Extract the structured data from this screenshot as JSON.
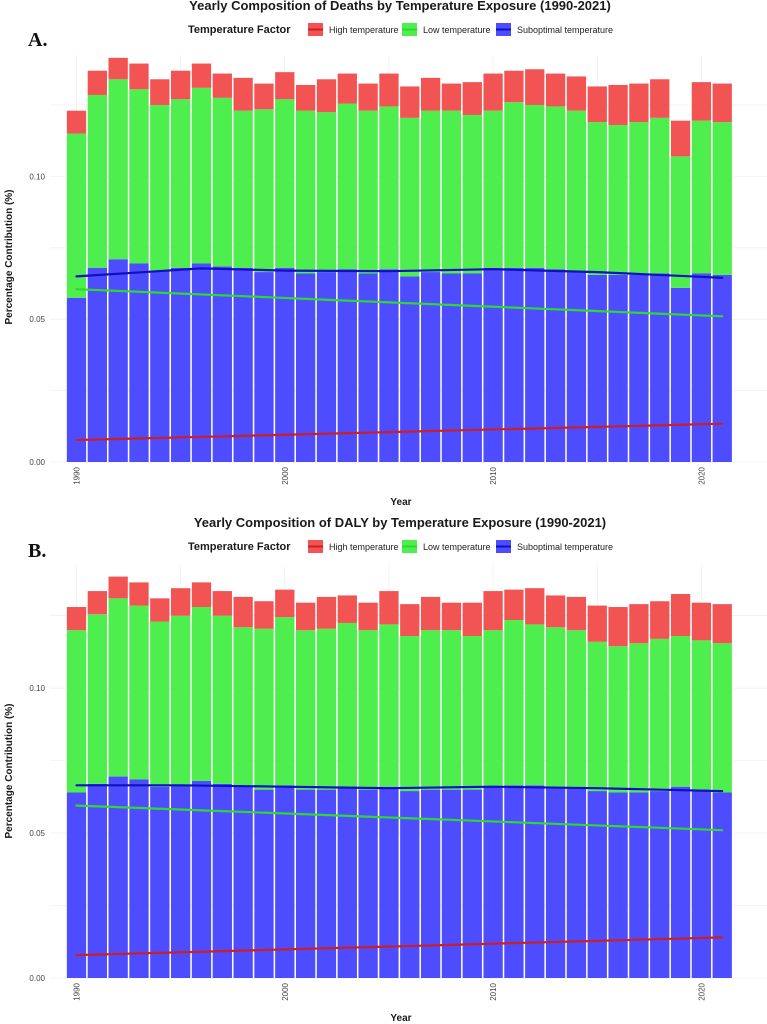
{
  "chart_data": [
    {
      "type": "bar",
      "panel_label": "A.",
      "title": "Yearly Composition of Deaths by Temperature Exposure (1990-2021)",
      "xlabel": "Year",
      "ylabel": "Percentage Contribution (%)",
      "legend_title": "Temperature Factor",
      "legend_position": "top",
      "ylim": [
        0,
        0.1425
      ],
      "y_ticks": [
        "0.00",
        "0.05",
        "0.10"
      ],
      "y_tick_values": [
        0,
        0.05,
        0.1
      ],
      "x_ticks": [
        "1990",
        "2000",
        "2010",
        "2020"
      ],
      "x_tick_values": [
        1990,
        2000,
        2010,
        2020
      ],
      "grid": true,
      "x": [
        1990,
        1991,
        1992,
        1993,
        1994,
        1995,
        1996,
        1997,
        1998,
        1999,
        2000,
        2001,
        2002,
        2003,
        2004,
        2005,
        2006,
        2007,
        2008,
        2009,
        2010,
        2011,
        2012,
        2013,
        2014,
        2015,
        2016,
        2017,
        2018,
        2019,
        2020,
        2021
      ],
      "series": [
        {
          "name": "Suboptimal temperature",
          "color": "#4d4dff",
          "values": [
            0.0575,
            0.068,
            0.071,
            0.0695,
            0.067,
            0.068,
            0.0695,
            0.0685,
            0.068,
            0.0665,
            0.068,
            0.066,
            0.0665,
            0.0675,
            0.066,
            0.0675,
            0.065,
            0.0665,
            0.066,
            0.066,
            0.068,
            0.068,
            0.068,
            0.0675,
            0.067,
            0.0655,
            0.0655,
            0.0655,
            0.066,
            0.061,
            0.066,
            0.0655
          ]
        },
        {
          "name": "Low temperature",
          "color": "#4dee4d",
          "values": [
            0.0575,
            0.0605,
            0.063,
            0.061,
            0.058,
            0.059,
            0.0615,
            0.059,
            0.055,
            0.057,
            0.059,
            0.057,
            0.056,
            0.058,
            0.057,
            0.057,
            0.0555,
            0.0565,
            0.057,
            0.0555,
            0.055,
            0.058,
            0.057,
            0.057,
            0.056,
            0.0535,
            0.0525,
            0.0535,
            0.0545,
            0.046,
            0.0535,
            0.0535
          ]
        },
        {
          "name": "High temperature",
          "color": "#f25454",
          "values": [
            0.008,
            0.0085,
            0.0075,
            0.009,
            0.009,
            0.01,
            0.0085,
            0.0085,
            0.0115,
            0.009,
            0.0095,
            0.009,
            0.0115,
            0.0105,
            0.0095,
            0.0115,
            0.011,
            0.0115,
            0.0095,
            0.0115,
            0.013,
            0.011,
            0.0125,
            0.0115,
            0.012,
            0.0125,
            0.014,
            0.0135,
            0.0135,
            0.0125,
            0.0135,
            0.0135
          ]
        }
      ],
      "trend_lines": [
        {
          "name": "High temperature",
          "color": "#cc1f1f",
          "start": 0.0077,
          "end": 0.0134
        },
        {
          "name": "Low temperature",
          "color": "#2fd82f",
          "start": 0.0605,
          "end": 0.051
        },
        {
          "name": "Suboptimal temperature",
          "color": "#1010c0",
          "points": [
            [
              1990,
              0.065
            ],
            [
              1996,
              0.0678
            ],
            [
              2000,
              0.067
            ],
            [
              2005,
              0.0668
            ],
            [
              2010,
              0.0675
            ],
            [
              2015,
              0.0665
            ],
            [
              2021,
              0.0645
            ]
          ]
        }
      ]
    },
    {
      "type": "bar",
      "panel_label": "B.",
      "title": "Yearly Composition of DALY by Temperature Exposure (1990-2021)",
      "xlabel": "Year",
      "ylabel": "Percentage Contribution (%)",
      "legend_title": "Temperature Factor",
      "legend_position": "top",
      "ylim": [
        0,
        0.1425
      ],
      "y_ticks": [
        "0.00",
        "0.05",
        "0.10"
      ],
      "y_tick_values": [
        0,
        0.05,
        0.1
      ],
      "x_ticks": [
        "1990",
        "2000",
        "2010",
        "2020"
      ],
      "x_tick_values": [
        1990,
        2000,
        2010,
        2020
      ],
      "grid": true,
      "x": [
        1990,
        1991,
        1992,
        1993,
        1994,
        1995,
        1996,
        1997,
        1998,
        1999,
        2000,
        2001,
        2002,
        2003,
        2004,
        2005,
        2006,
        2007,
        2008,
        2009,
        2010,
        2011,
        2012,
        2013,
        2014,
        2015,
        2016,
        2017,
        2018,
        2019,
        2020,
        2021
      ],
      "series": [
        {
          "name": "Suboptimal temperature",
          "color": "#4d4dff",
          "values": [
            0.064,
            0.067,
            0.0695,
            0.0685,
            0.066,
            0.0665,
            0.068,
            0.067,
            0.066,
            0.065,
            0.0665,
            0.065,
            0.065,
            0.066,
            0.065,
            0.066,
            0.0645,
            0.065,
            0.065,
            0.065,
            0.066,
            0.0665,
            0.0665,
            0.066,
            0.0655,
            0.0645,
            0.064,
            0.064,
            0.0645,
            0.066,
            0.065,
            0.064
          ]
        },
        {
          "name": "Low temperature",
          "color": "#4dee4d",
          "values": [
            0.056,
            0.0585,
            0.0615,
            0.06,
            0.057,
            0.0585,
            0.06,
            0.058,
            0.055,
            0.0555,
            0.058,
            0.055,
            0.0555,
            0.0565,
            0.055,
            0.056,
            0.0535,
            0.055,
            0.055,
            0.053,
            0.054,
            0.057,
            0.0555,
            0.055,
            0.0545,
            0.0515,
            0.0505,
            0.0515,
            0.0525,
            0.052,
            0.0515,
            0.0515
          ]
        },
        {
          "name": "High temperature",
          "color": "#f25454",
          "values": [
            0.008,
            0.008,
            0.0075,
            0.008,
            0.008,
            0.0095,
            0.0085,
            0.0085,
            0.0105,
            0.0095,
            0.0095,
            0.0095,
            0.011,
            0.0095,
            0.0095,
            0.0115,
            0.011,
            0.0115,
            0.0095,
            0.0115,
            0.0135,
            0.0105,
            0.0125,
            0.011,
            0.0115,
            0.0125,
            0.0135,
            0.0135,
            0.013,
            0.0145,
            0.013,
            0.0135
          ]
        }
      ],
      "trend_lines": [
        {
          "name": "High temperature",
          "color": "#cc1f1f",
          "start": 0.0079,
          "end": 0.014
        },
        {
          "name": "Low temperature",
          "color": "#2fd82f",
          "start": 0.0595,
          "end": 0.051
        },
        {
          "name": "Suboptimal temperature",
          "color": "#1010c0",
          "points": [
            [
              1990,
              0.0665
            ],
            [
              1995,
              0.0665
            ],
            [
              2000,
              0.066
            ],
            [
              2005,
              0.0655
            ],
            [
              2010,
              0.066
            ],
            [
              2015,
              0.0655
            ],
            [
              2021,
              0.0645
            ]
          ]
        }
      ]
    }
  ]
}
